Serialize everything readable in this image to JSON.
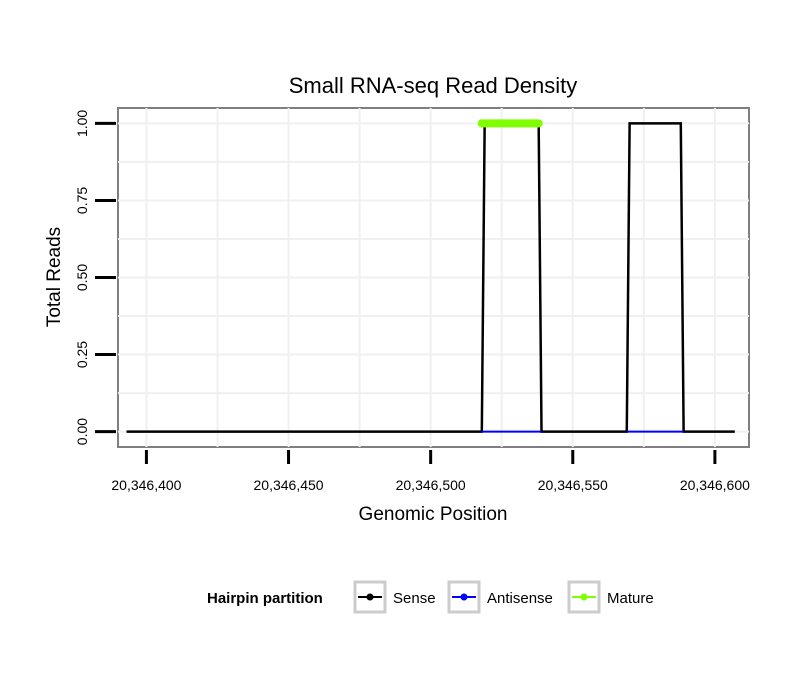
{
  "chart_data": {
    "type": "line",
    "title": "Small RNA-seq Read Density",
    "xlabel": "Genomic Position",
    "ylabel": "Total Reads",
    "xlim": [
      20346390,
      20346612
    ],
    "ylim": [
      -0.05,
      1.05
    ],
    "xticks": [
      20346400,
      20346450,
      20346500,
      20346550,
      20346600
    ],
    "xtick_labels": [
      "20,346,400",
      "20,346,450",
      "20,346,500",
      "20,346,550",
      "20,346,600"
    ],
    "yticks": [
      0,
      0.25,
      0.5,
      0.75,
      1
    ],
    "ytick_labels": [
      "0.00",
      "0.25",
      "0.50",
      "0.75",
      "1.00"
    ],
    "grid": true,
    "legend": {
      "title": "Hairpin partition",
      "position": "bottom",
      "entries": [
        {
          "label": "Sense",
          "color": "#000000"
        },
        {
          "label": "Antisense",
          "color": "#0000ff"
        },
        {
          "label": "Mature",
          "color": "#7fff00"
        }
      ]
    },
    "series": [
      {
        "name": "Sense",
        "color": "#000000",
        "x": [
          20346393,
          20346518,
          20346519,
          20346538,
          20346539,
          20346569,
          20346570,
          20346588,
          20346589,
          20346607
        ],
        "y": [
          0,
          0,
          1,
          1,
          0,
          0,
          1,
          1,
          0,
          0
        ]
      },
      {
        "name": "Antisense",
        "color": "#0000ff",
        "x": [
          20346518,
          20346539,
          20346569,
          20346589
        ],
        "y": [
          0,
          0,
          0,
          0
        ],
        "segments": true
      },
      {
        "name": "Mature",
        "color": "#7fff00",
        "x": [
          20346518,
          20346538
        ],
        "y": [
          1,
          1
        ]
      }
    ]
  }
}
